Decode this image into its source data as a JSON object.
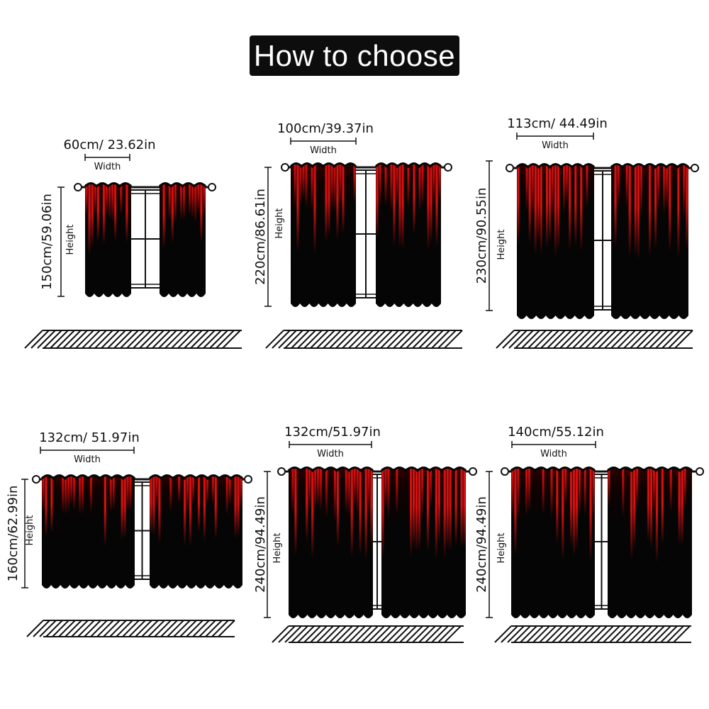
{
  "title": "How to choose",
  "colors": {
    "curtain_red": "#e01010",
    "curtain_black": "#050505",
    "line": "#111111"
  },
  "width_word": "Width",
  "height_word": "Height",
  "sizes": [
    {
      "width_label": "60cm/ 23.62in",
      "height_label": "150cm/59.06in"
    },
    {
      "width_label": "100cm/39.37in",
      "height_label": "220cm/86.61in"
    },
    {
      "width_label": "113cm/ 44.49in",
      "height_label": "230cm/90.55in"
    },
    {
      "width_label": "132cm/ 51.97in",
      "height_label": "160cm/62.99in"
    },
    {
      "width_label": "132cm/51.97in",
      "height_label": "240cm/94.49in"
    },
    {
      "width_label": "140cm/55.12in",
      "height_label": "240cm/94.49in"
    }
  ]
}
